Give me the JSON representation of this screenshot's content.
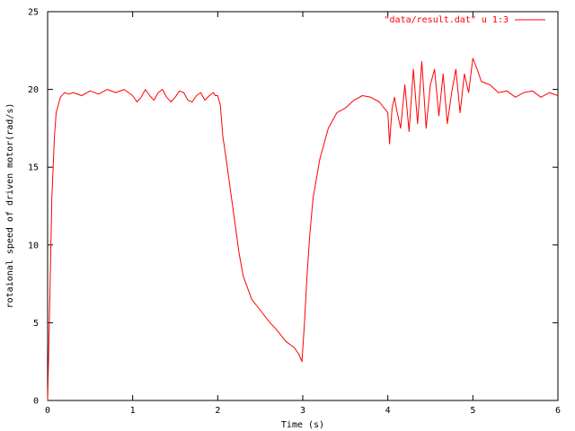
{
  "chart_data": {
    "type": "line",
    "title": "",
    "xlabel": "Time (s)",
    "ylabel": "rotaional speed of driven motor(rad/s)",
    "xlim": [
      0,
      6
    ],
    "ylim": [
      0,
      25
    ],
    "xticks": [
      0,
      1,
      2,
      3,
      4,
      5,
      6
    ],
    "yticks": [
      0,
      5,
      10,
      15,
      20,
      25
    ],
    "grid": false,
    "legend_position": "top-right",
    "series": [
      {
        "name": "\"data/result.dat\" u 1:3",
        "color": "#ff0000",
        "x": [
          0,
          0.02,
          0.05,
          0.08,
          0.1,
          0.15,
          0.2,
          0.25,
          0.3,
          0.4,
          0.5,
          0.6,
          0.7,
          0.8,
          0.9,
          1.0,
          1.05,
          1.1,
          1.15,
          1.2,
          1.25,
          1.3,
          1.35,
          1.4,
          1.45,
          1.5,
          1.55,
          1.6,
          1.65,
          1.7,
          1.75,
          1.8,
          1.85,
          1.9,
          1.95,
          1.97,
          2.0,
          2.03,
          2.06,
          2.1,
          2.15,
          2.2,
          2.25,
          2.3,
          2.4,
          2.5,
          2.6,
          2.7,
          2.8,
          2.9,
          2.95,
          2.99,
          3.02,
          3.05,
          3.08,
          3.12,
          3.2,
          3.3,
          3.4,
          3.5,
          3.6,
          3.7,
          3.8,
          3.9,
          4.0,
          4.02,
          4.05,
          4.08,
          4.1,
          4.15,
          4.2,
          4.25,
          4.3,
          4.35,
          4.4,
          4.45,
          4.5,
          4.55,
          4.6,
          4.65,
          4.7,
          4.75,
          4.8,
          4.85,
          4.9,
          4.95,
          5.0,
          5.05,
          5.1,
          5.2,
          5.3,
          5.4,
          5.5,
          5.6,
          5.7,
          5.8,
          5.9,
          6.0
        ],
        "y": [
          0.0,
          5.0,
          13.0,
          17.0,
          18.5,
          19.5,
          19.8,
          19.7,
          19.8,
          19.6,
          19.9,
          19.7,
          20.0,
          19.8,
          20.0,
          19.6,
          19.2,
          19.5,
          20.0,
          19.6,
          19.3,
          19.8,
          20.0,
          19.5,
          19.2,
          19.5,
          19.9,
          19.8,
          19.3,
          19.2,
          19.6,
          19.8,
          19.3,
          19.6,
          19.8,
          19.6,
          19.6,
          19.0,
          17.0,
          15.5,
          13.5,
          11.5,
          9.5,
          8.0,
          6.5,
          5.8,
          5.1,
          4.5,
          3.8,
          3.4,
          3.0,
          2.5,
          5.0,
          8.0,
          10.5,
          13.0,
          15.5,
          17.5,
          18.5,
          18.8,
          19.3,
          19.6,
          19.5,
          19.2,
          18.5,
          16.5,
          18.8,
          19.5,
          18.8,
          17.5,
          20.3,
          17.3,
          21.3,
          17.8,
          21.8,
          17.5,
          20.3,
          21.3,
          18.3,
          21.0,
          17.8,
          19.8,
          21.3,
          18.5,
          21.0,
          19.8,
          22.0,
          21.3,
          20.5,
          20.3,
          19.8,
          19.9,
          19.5,
          19.8,
          19.9,
          19.5,
          19.8,
          19.6
        ]
      }
    ]
  }
}
